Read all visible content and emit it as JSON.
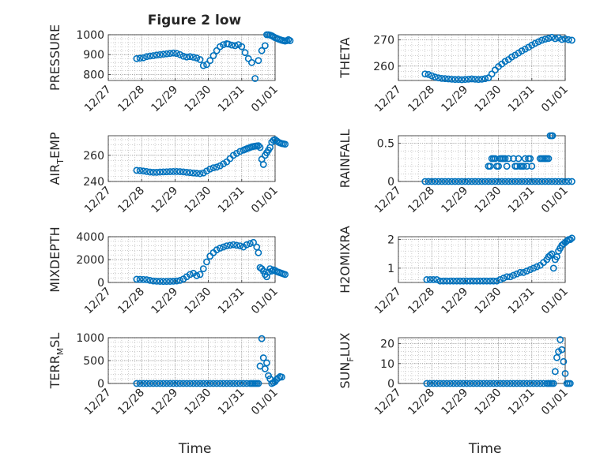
{
  "title": "Figure 2 low",
  "xticks": [
    "12/27",
    "12/28",
    "12/29",
    "12/30",
    "12/31",
    "01/01"
  ],
  "colors": {
    "marker": "#0072BD",
    "axis": "#262626",
    "grid": "#b0b0b0"
  },
  "chart_data": [
    {
      "type": "scatter",
      "ylabel_main": "PRESSURE",
      "ylabel_sub": "",
      "xlabel": "",
      "ylim": [
        770,
        1000
      ],
      "yticks": [
        800,
        900,
        1000
      ],
      "grid": true,
      "series": [
        {
          "x": [
            0.85,
            0.95,
            1.05,
            1.15,
            1.25,
            1.35,
            1.45,
            1.55,
            1.65,
            1.75,
            1.85,
            1.95,
            2.05,
            2.15,
            2.25,
            2.35,
            2.45,
            2.55,
            2.65,
            2.75,
            2.85,
            2.95,
            3.05,
            3.15,
            3.25,
            3.35,
            3.45,
            3.55,
            3.6,
            3.7,
            3.8,
            3.9,
            4.0,
            4.1,
            4.2,
            4.3,
            4.4,
            4.5,
            4.6,
            4.7,
            4.75,
            4.8,
            4.85,
            4.9,
            4.95,
            5.0,
            5.05,
            5.1,
            5.15,
            5.2,
            5.25,
            5.3,
            5.35,
            5.4,
            5.45
          ],
          "y": [
            880,
            882,
            884,
            890,
            893,
            895,
            898,
            900,
            902,
            904,
            906,
            908,
            906,
            900,
            892,
            888,
            890,
            887,
            883,
            875,
            845,
            850,
            870,
            895,
            920,
            940,
            950,
            955,
            953,
            948,
            945,
            950,
            940,
            910,
            880,
            860,
            780,
            870,
            920,
            945,
            1000,
            1000,
            998,
            995,
            990,
            985,
            982,
            978,
            975,
            972,
            970,
            968,
            970,
            975,
            970
          ]
        }
      ]
    },
    {
      "type": "scatter",
      "ylabel_main": "THETA",
      "ylabel_sub": "",
      "xlabel": "",
      "ylim": [
        254.5,
        272
      ],
      "yticks": [
        260,
        270
      ],
      "grid": true,
      "series": [
        {
          "x": [
            0.8,
            0.9,
            1.0,
            1.1,
            1.2,
            1.3,
            1.4,
            1.5,
            1.6,
            1.7,
            1.8,
            1.9,
            2.0,
            2.1,
            2.2,
            2.3,
            2.4,
            2.5,
            2.6,
            2.7,
            2.8,
            2.9,
            3.0,
            3.1,
            3.2,
            3.3,
            3.4,
            3.5,
            3.6,
            3.7,
            3.8,
            3.9,
            4.0,
            4.1,
            4.2,
            4.3,
            4.4,
            4.5,
            4.6,
            4.7,
            4.8,
            4.9,
            5.0,
            5.1,
            5.2
          ],
          "y": [
            257,
            256.8,
            256.3,
            255.8,
            255.5,
            255.3,
            255.2,
            255.1,
            255,
            254.9,
            254.9,
            254.8,
            254.9,
            255,
            255.1,
            255,
            254.9,
            255,
            255.2,
            255.5,
            257,
            258.5,
            259.8,
            260.8,
            261.8,
            262.5,
            263.5,
            264.2,
            265,
            265.8,
            266.5,
            267.2,
            268,
            268.7,
            269.3,
            269.9,
            270.3,
            270.6,
            271,
            270.5,
            270.8,
            270.2,
            270.4,
            270.1,
            269.9
          ]
        }
      ]
    },
    {
      "type": "scatter",
      "ylabel_main": "AIR",
      "ylabel_sub": "T",
      "ylabel_tail": "EMP",
      "xlabel": "",
      "ylim": [
        240,
        275
      ],
      "yticks": [
        240,
        260
      ],
      "grid": true,
      "series": [
        {
          "x": [
            0.85,
            0.95,
            1.05,
            1.15,
            1.25,
            1.35,
            1.45,
            1.55,
            1.65,
            1.75,
            1.85,
            1.95,
            2.05,
            2.15,
            2.25,
            2.35,
            2.45,
            2.55,
            2.65,
            2.75,
            2.85,
            2.95,
            3.05,
            3.15,
            3.25,
            3.35,
            3.45,
            3.55,
            3.65,
            3.75,
            3.85,
            3.95,
            4.05,
            4.1,
            4.15,
            4.2,
            4.25,
            4.3,
            4.35,
            4.4,
            4.45,
            4.5,
            4.55,
            4.6,
            4.65,
            4.7,
            4.75,
            4.8,
            4.85,
            4.9,
            4.95,
            5.0,
            5.05,
            5.1,
            5.15,
            5.2,
            5.25,
            5.3
          ],
          "y": [
            248.5,
            248.3,
            248,
            247.6,
            247.2,
            247,
            247,
            247.2,
            247.3,
            247.4,
            247.5,
            247.6,
            247.6,
            247.5,
            247.3,
            247,
            246.8,
            246.5,
            246.3,
            246,
            246.5,
            248,
            249.5,
            250.5,
            251,
            252,
            253.5,
            255,
            257.5,
            260,
            261.5,
            263,
            264,
            264.5,
            265,
            265.5,
            266,
            266.5,
            266.8,
            267,
            267.2,
            267.4,
            266,
            257,
            253,
            260,
            262,
            264,
            266,
            270,
            271.5,
            272,
            271,
            270,
            269.5,
            269,
            268.8,
            268.5
          ]
        }
      ]
    },
    {
      "type": "scatter",
      "ylabel_main": "RAINFALL",
      "ylabel_sub": "",
      "xlabel": "",
      "ylim": [
        0,
        0.6
      ],
      "yticks": [
        0,
        0.5
      ],
      "grid": true,
      "series": [
        {
          "x": [
            0.8,
            0.9,
            1.0,
            1.1,
            1.2,
            1.3,
            1.4,
            1.5,
            1.6,
            1.7,
            1.8,
            1.9,
            2.0,
            2.1,
            2.2,
            2.3,
            2.4,
            2.5,
            2.6,
            2.7,
            2.8,
            2.9,
            3.0,
            3.1,
            3.2,
            3.3,
            3.4,
            3.5,
            3.6,
            3.7,
            3.8,
            3.9,
            4.0,
            4.1,
            4.2,
            4.3,
            4.4,
            4.5,
            4.6,
            4.7,
            4.8,
            4.9,
            5.0,
            5.1,
            5.2,
            2.7,
            2.75,
            2.8,
            2.85,
            2.9,
            2.95,
            3.0,
            3.05,
            3.1,
            3.15,
            3.2,
            3.25,
            3.3,
            3.45,
            3.5,
            3.55,
            3.6,
            3.65,
            3.7,
            3.75,
            3.8,
            3.85,
            3.9,
            3.95,
            4.0,
            4.25,
            4.3,
            4.35,
            4.4,
            4.45,
            4.5,
            4.55,
            4.6,
            4.62
          ],
          "y": [
            0,
            0,
            0,
            0,
            0,
            0,
            0,
            0,
            0,
            0,
            0,
            0,
            0,
            0,
            0,
            0,
            0,
            0,
            0,
            0,
            0,
            0,
            0,
            0,
            0,
            0,
            0,
            0,
            0,
            0,
            0,
            0,
            0,
            0,
            0,
            0,
            0,
            0,
            0,
            0,
            0,
            0,
            0,
            0,
            0,
            0.2,
            0.2,
            0.3,
            0.3,
            0.3,
            0.2,
            0.2,
            0.3,
            0.3,
            0.3,
            0.3,
            0.2,
            0.3,
            0.3,
            0.2,
            0.2,
            0.3,
            0.2,
            0.2,
            0.2,
            0.3,
            0.2,
            0.3,
            0.3,
            0.2,
            0.3,
            0.3,
            0.3,
            0.3,
            0.3,
            0.3,
            0.6,
            0.6,
            0.6
          ]
        }
      ]
    },
    {
      "type": "scatter",
      "ylabel_main": "MIXDEPTH",
      "ylabel_sub": "",
      "xlabel": "",
      "ylim": [
        0,
        4000
      ],
      "yticks": [
        0,
        2000,
        4000
      ],
      "grid": true,
      "series": [
        {
          "x": [
            0.85,
            0.95,
            1.05,
            1.15,
            1.25,
            1.35,
            1.45,
            1.55,
            1.65,
            1.75,
            1.85,
            1.95,
            2.05,
            2.15,
            2.25,
            2.35,
            2.45,
            2.55,
            2.65,
            2.75,
            2.85,
            2.95,
            3.05,
            3.15,
            3.25,
            3.35,
            3.45,
            3.55,
            3.65,
            3.75,
            3.85,
            3.95,
            4.05,
            4.15,
            4.25,
            4.35,
            4.45,
            4.5,
            4.55,
            4.6,
            4.65,
            4.7,
            4.75,
            4.8,
            4.85,
            4.9,
            4.95,
            5.0,
            5.05,
            5.1,
            5.15,
            5.2,
            5.25,
            5.3
          ],
          "y": [
            280,
            270,
            260,
            240,
            180,
            130,
            110,
            100,
            90,
            95,
            100,
            110,
            130,
            180,
            300,
            500,
            700,
            800,
            600,
            700,
            1200,
            1800,
            2300,
            2600,
            2850,
            3000,
            3100,
            3200,
            3250,
            3300,
            3250,
            3200,
            3100,
            3300,
            3400,
            3500,
            3100,
            2600,
            1300,
            1200,
            1000,
            700,
            500,
            900,
            1200,
            1000,
            1100,
            1050,
            950,
            900,
            850,
            800,
            750,
            700
          ]
        }
      ]
    },
    {
      "type": "scatter",
      "ylabel_main": "H2OMIXRA",
      "ylabel_sub": "",
      "xlabel": "",
      "ylim": [
        0.5,
        2.1
      ],
      "yticks": [
        1,
        2
      ],
      "grid": true,
      "series": [
        {
          "x": [
            0.85,
            0.95,
            1.05,
            1.15,
            1.25,
            1.35,
            1.45,
            1.55,
            1.65,
            1.75,
            1.85,
            1.95,
            2.05,
            2.15,
            2.25,
            2.35,
            2.45,
            2.55,
            2.65,
            2.75,
            2.85,
            2.95,
            3.05,
            3.15,
            3.25,
            3.35,
            3.45,
            3.55,
            3.65,
            3.75,
            3.85,
            3.95,
            4.05,
            4.15,
            4.25,
            4.35,
            4.45,
            4.5,
            4.55,
            4.6,
            4.65,
            4.7,
            4.75,
            4.8,
            4.85,
            4.9,
            4.95,
            5.0,
            5.05,
            5.1,
            5.15,
            5.2
          ],
          "y": [
            0.6,
            0.6,
            0.6,
            0.6,
            0.55,
            0.55,
            0.55,
            0.55,
            0.55,
            0.55,
            0.55,
            0.55,
            0.55,
            0.55,
            0.55,
            0.55,
            0.55,
            0.55,
            0.55,
            0.55,
            0.55,
            0.55,
            0.6,
            0.65,
            0.7,
            0.7,
            0.75,
            0.8,
            0.85,
            0.85,
            0.9,
            0.95,
            1.0,
            1.05,
            1.1,
            1.2,
            1.3,
            1.4,
            1.45,
            1.5,
            1.0,
            1.3,
            1.4,
            1.6,
            1.7,
            1.8,
            1.85,
            1.9,
            1.95,
            2.0,
            2.0,
            2.05
          ]
        }
      ]
    },
    {
      "type": "scatter",
      "ylabel_main": "TERR",
      "ylabel_sub": "M",
      "ylabel_tail": "SL",
      "xlabel": "Time",
      "ylim": [
        0,
        1000
      ],
      "yticks": [
        0,
        500,
        1000
      ],
      "grid": true,
      "series": [
        {
          "x": [
            0.85,
            0.95,
            1.05,
            1.15,
            1.25,
            1.35,
            1.45,
            1.55,
            1.65,
            1.75,
            1.85,
            1.95,
            2.05,
            2.15,
            2.25,
            2.35,
            2.45,
            2.55,
            2.65,
            2.75,
            2.85,
            2.95,
            3.05,
            3.15,
            3.25,
            3.35,
            3.45,
            3.55,
            3.65,
            3.75,
            3.85,
            3.95,
            4.05,
            4.15,
            4.25,
            4.3,
            4.35,
            4.4,
            4.45,
            4.5,
            4.55,
            4.6,
            4.65,
            4.7,
            4.75,
            4.8,
            4.85,
            4.9,
            4.95,
            5.0,
            5.05,
            5.1,
            5.15,
            5.2
          ],
          "y": [
            0,
            0,
            0,
            0,
            0,
            0,
            0,
            0,
            0,
            0,
            0,
            0,
            0,
            0,
            0,
            0,
            0,
            0,
            0,
            0,
            0,
            0,
            0,
            0,
            0,
            0,
            0,
            0,
            0,
            0,
            0,
            0,
            0,
            0,
            0,
            0,
            0,
            0,
            0,
            0,
            380,
            980,
            560,
            320,
            450,
            170,
            100,
            0,
            20,
            40,
            90,
            120,
            150,
            140
          ]
        }
      ]
    },
    {
      "type": "scatter",
      "ylabel_main": "SUN",
      "ylabel_sub": "F",
      "ylabel_tail": "LUX",
      "xlabel": "Time",
      "ylim": [
        0,
        23
      ],
      "yticks": [
        0,
        10,
        20
      ],
      "grid": true,
      "series": [
        {
          "x": [
            0.85,
            0.95,
            1.05,
            1.15,
            1.25,
            1.35,
            1.45,
            1.55,
            1.65,
            1.75,
            1.85,
            1.95,
            2.05,
            2.15,
            2.25,
            2.35,
            2.45,
            2.55,
            2.65,
            2.75,
            2.85,
            2.95,
            3.05,
            3.15,
            3.25,
            3.35,
            3.45,
            3.55,
            3.65,
            3.75,
            3.85,
            3.95,
            4.05,
            4.15,
            4.25,
            4.35,
            4.45,
            4.5,
            4.55,
            4.6,
            4.65,
            4.7,
            4.75,
            4.8,
            4.85,
            4.9,
            4.95,
            5.0,
            5.05,
            5.1,
            5.15
          ],
          "y": [
            0,
            0,
            0,
            0,
            0,
            0,
            0,
            0,
            0,
            0,
            0,
            0,
            0,
            0,
            0,
            0,
            0,
            0,
            0,
            0,
            0,
            0,
            0,
            0,
            0,
            0,
            0,
            0,
            0,
            0,
            0,
            0,
            0,
            0,
            0,
            0,
            0,
            0,
            0,
            0,
            0,
            6,
            13,
            16,
            22,
            17,
            11,
            5,
            0,
            0,
            0
          ]
        }
      ]
    }
  ]
}
